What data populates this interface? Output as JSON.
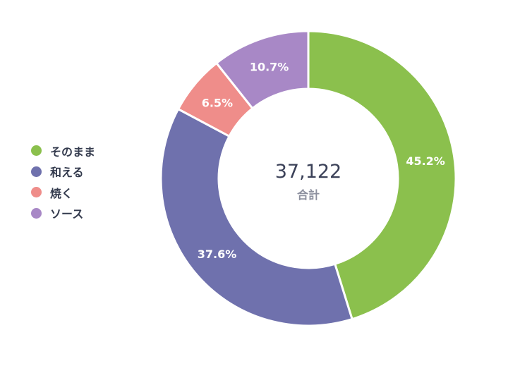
{
  "chart_data": {
    "type": "pie",
    "variant": "donut",
    "title": "",
    "categories": [
      "そのまま",
      "和える",
      "焼く",
      "ソース"
    ],
    "values": [
      45.2,
      37.6,
      6.5,
      10.7
    ],
    "value_labels": [
      "45.2%",
      "37.6%",
      "6.5%",
      "10.7%"
    ],
    "colors": [
      "#8bc04d",
      "#6f71ad",
      "#ef8d8a",
      "#a888c6"
    ],
    "center": {
      "value": "37,122",
      "caption": "合計"
    },
    "legend_position": "left",
    "start_angle": "top",
    "direction": "clockwise"
  }
}
